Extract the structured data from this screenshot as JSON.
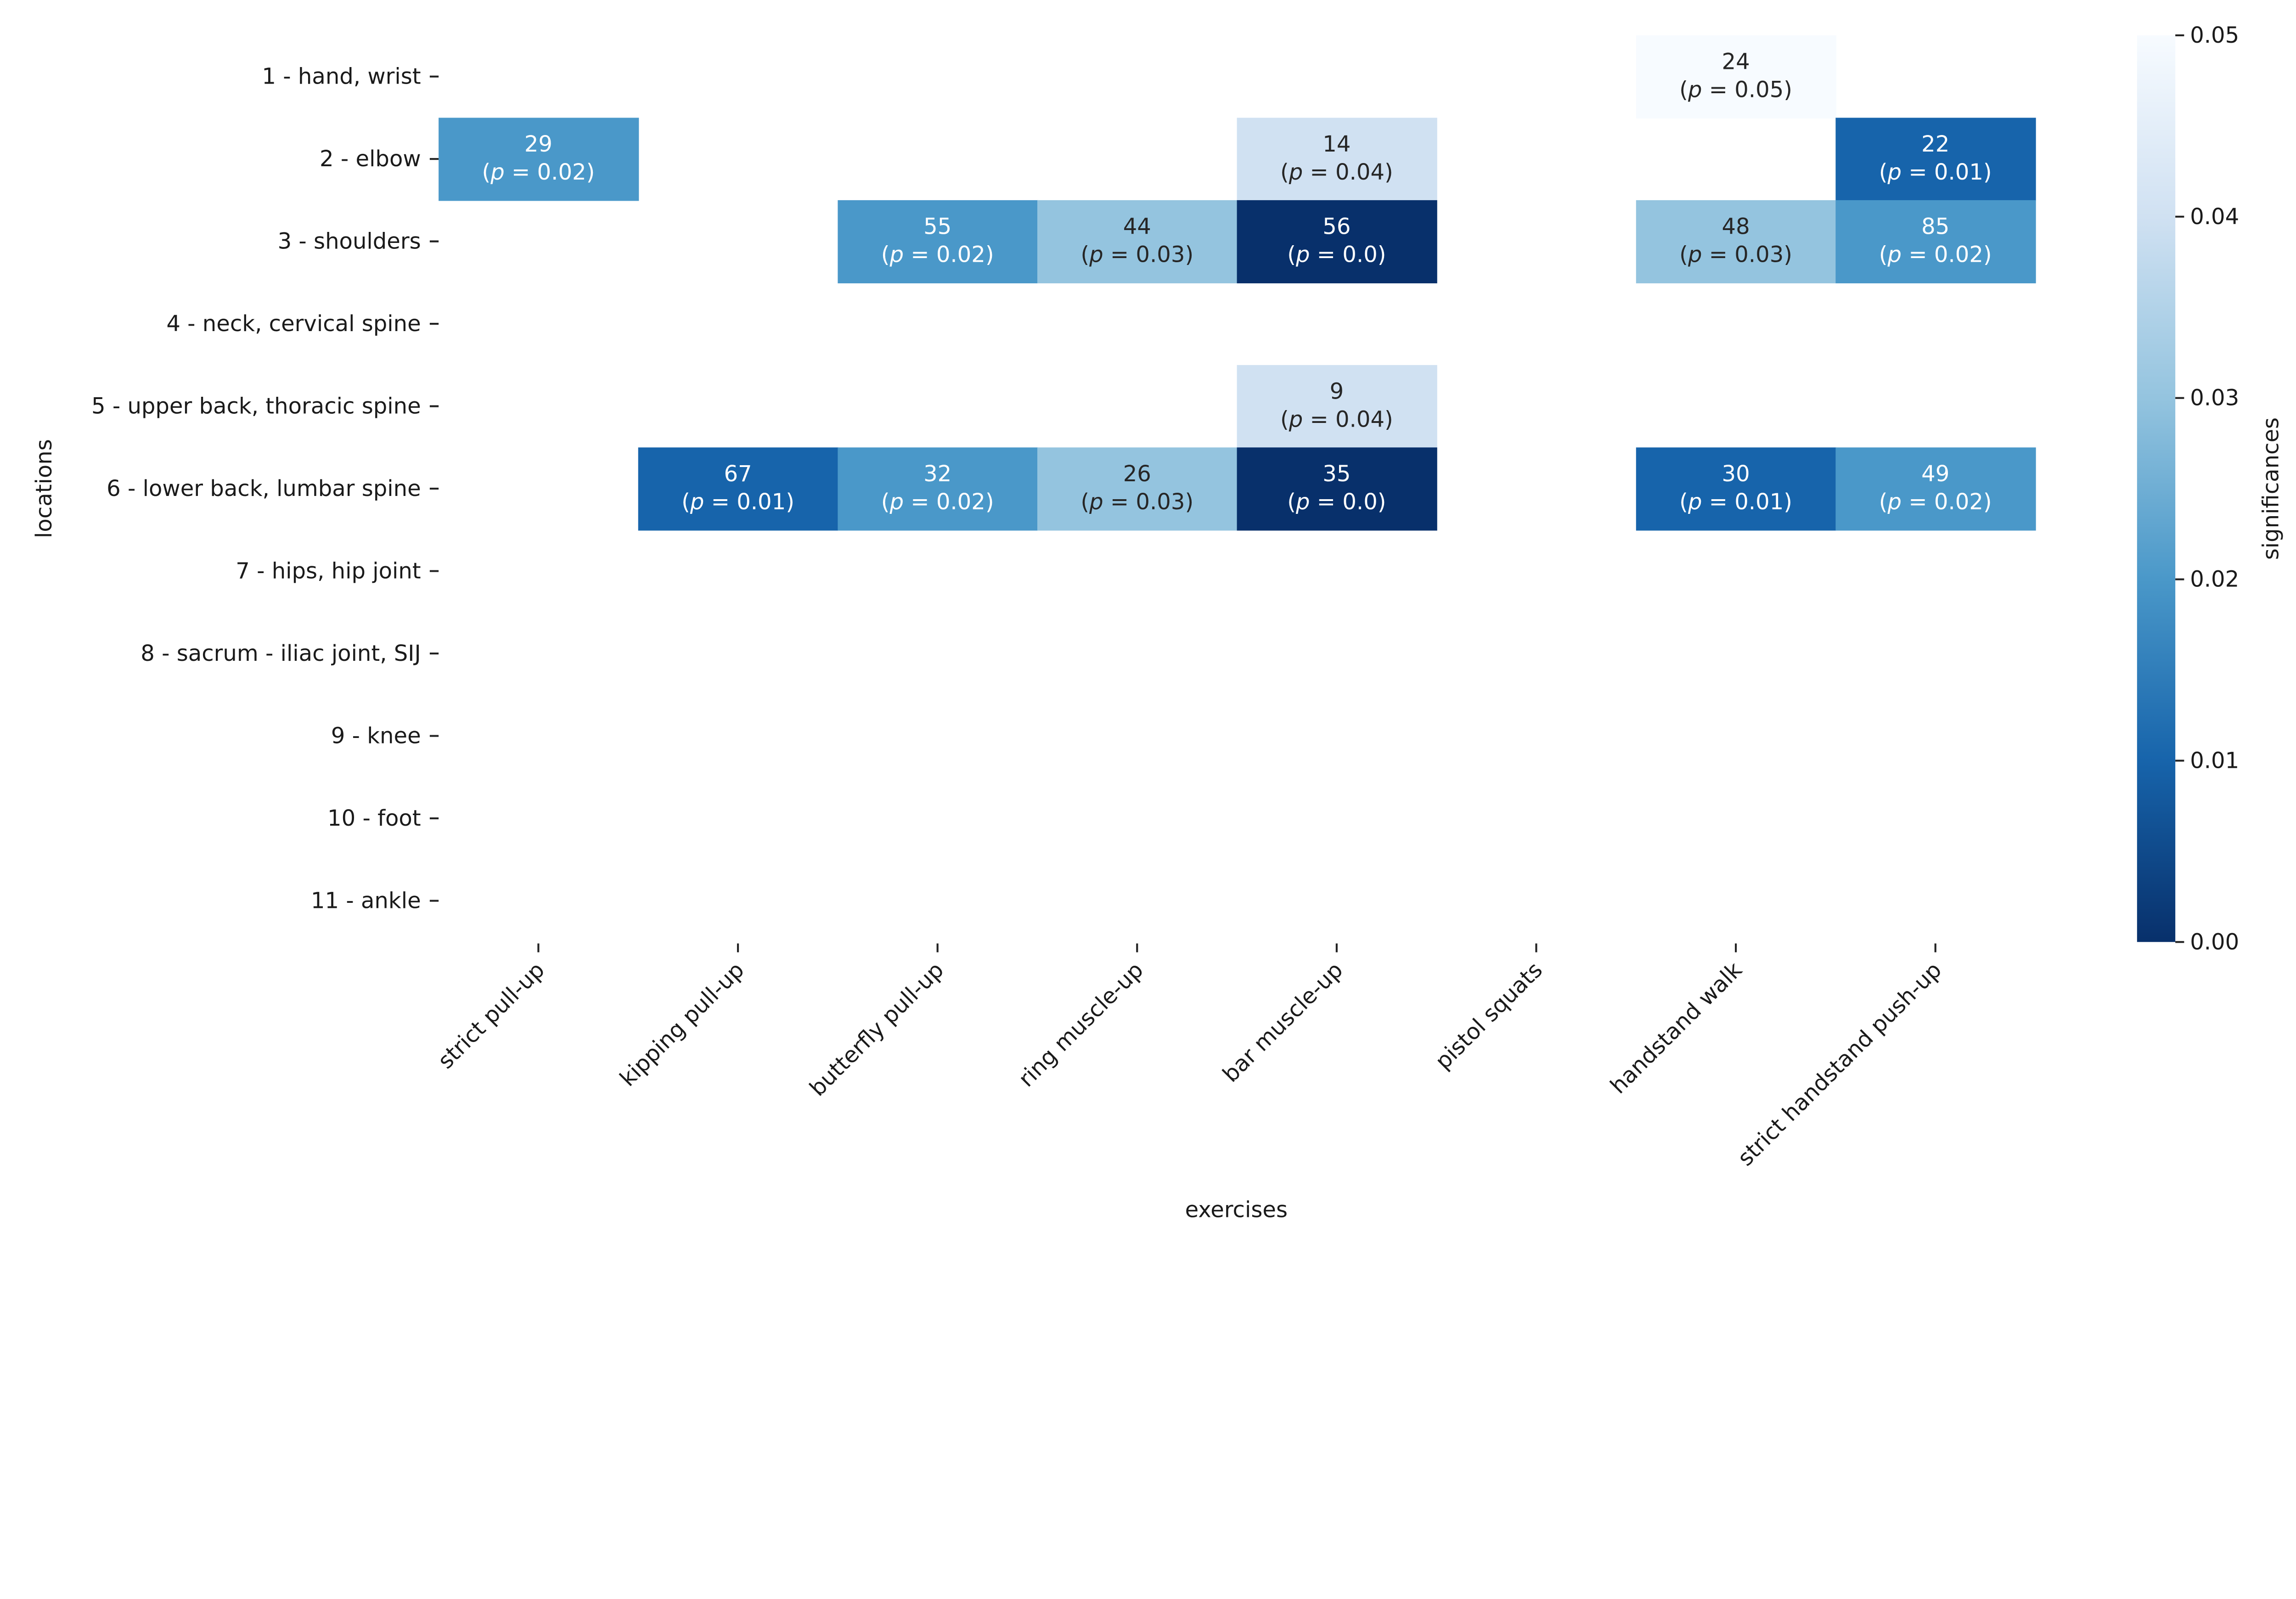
{
  "chart_data": {
    "type": "heatmap",
    "xlabel": "exercises",
    "ylabel": "locations",
    "x_categories": [
      "strict pull-up",
      "kipping pull-up",
      "butterfly pull-up",
      "ring muscle-up",
      "bar muscle-up",
      "pistol squats",
      "handstand walk",
      "strict handstand push-up"
    ],
    "y_categories": [
      "1 - hand, wrist",
      "2 - elbow",
      "3 - shoulders",
      "4 - neck, cervical spine",
      "5 - upper back, thoracic spine",
      "6 - lower back, lumbar spine",
      "7 - hips, hip joint",
      "8 - sacrum - iliac joint, SIJ",
      "9 - knee",
      "10 - foot",
      "11 - ankle"
    ],
    "cells": [
      {
        "row": 0,
        "col": 6,
        "count": 24,
        "p": 0.05
      },
      {
        "row": 1,
        "col": 0,
        "count": 29,
        "p": 0.02
      },
      {
        "row": 1,
        "col": 4,
        "count": 14,
        "p": 0.04
      },
      {
        "row": 1,
        "col": 7,
        "count": 22,
        "p": 0.01
      },
      {
        "row": 2,
        "col": 2,
        "count": 55,
        "p": 0.02
      },
      {
        "row": 2,
        "col": 3,
        "count": 44,
        "p": 0.03
      },
      {
        "row": 2,
        "col": 4,
        "count": 56,
        "p": 0.0
      },
      {
        "row": 2,
        "col": 6,
        "count": 48,
        "p": 0.03
      },
      {
        "row": 2,
        "col": 7,
        "count": 85,
        "p": 0.02
      },
      {
        "row": 4,
        "col": 4,
        "count": 9,
        "p": 0.04
      },
      {
        "row": 5,
        "col": 1,
        "count": 67,
        "p": 0.01
      },
      {
        "row": 5,
        "col": 2,
        "count": 32,
        "p": 0.02
      },
      {
        "row": 5,
        "col": 3,
        "count": 26,
        "p": 0.03
      },
      {
        "row": 5,
        "col": 4,
        "count": 35,
        "p": 0.0
      },
      {
        "row": 5,
        "col": 6,
        "count": 30,
        "p": 0.01
      },
      {
        "row": 5,
        "col": 7,
        "count": 49,
        "p": 0.02
      }
    ],
    "colorbar": {
      "label": "significances",
      "range": [
        0,
        0.05
      ],
      "ticks": [
        "0.00",
        "0.01",
        "0.02",
        "0.03",
        "0.04",
        "0.05"
      ],
      "colormap": "Blues_r",
      "colors": [
        "#08306b",
        "#1764ab",
        "#4a98c9",
        "#94c4df",
        "#d0e1f2",
        "#f7fbff"
      ]
    },
    "grid": false
  }
}
